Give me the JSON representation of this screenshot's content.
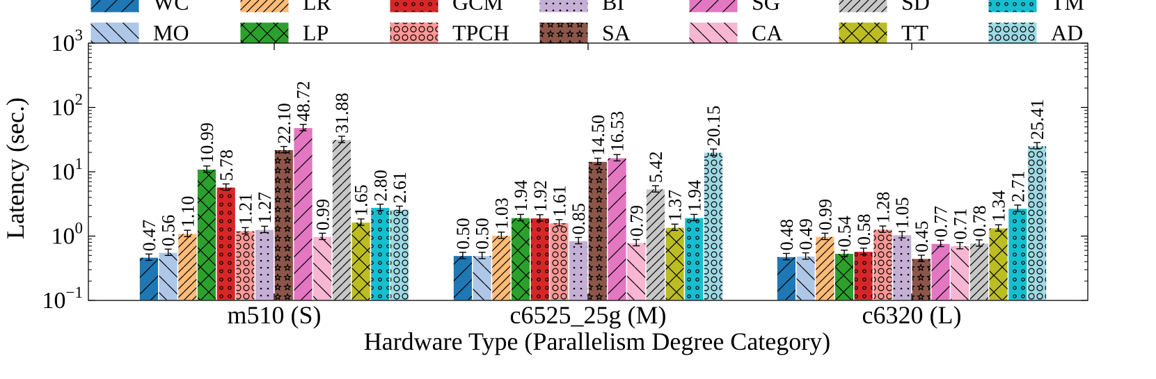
{
  "chart_data": {
    "type": "bar",
    "xlabel": "Hardware Type (Parallelism Degree Category)",
    "ylabel": "Latency (sec.)",
    "yscale": "log",
    "ylim": [
      0.1,
      1000
    ],
    "y_ticks": [
      {
        "base": "10",
        "exp": "3"
      },
      {
        "base": "10",
        "exp": "2"
      },
      {
        "base": "10",
        "exp": "1"
      },
      {
        "base": "10",
        "exp": "0"
      },
      {
        "base": "10",
        "exp": "−1"
      }
    ],
    "legend_placement": "top",
    "categories": [
      "m510 (S)",
      "c6525_25g (M)",
      "c6320 (L)"
    ],
    "series": [
      {
        "name": "WC",
        "color": "#1f77b4",
        "pattern": "diag-fwd",
        "values": [
          0.47,
          0.5,
          0.48
        ],
        "labels": [
          "0.47",
          "0.50",
          "0.48"
        ]
      },
      {
        "name": "MO",
        "color": "#aec7e8",
        "pattern": "diag-back",
        "values": [
          0.56,
          0.5,
          0.49
        ],
        "labels": [
          "0.56",
          "0.50",
          "0.49"
        ]
      },
      {
        "name": "LR",
        "color": "#ffbb78",
        "pattern": "diag-fwd-dense",
        "values": [
          1.1,
          1.03,
          0.99
        ],
        "labels": [
          "1.10",
          "1.03",
          "0.99"
        ]
      },
      {
        "name": "LP",
        "color": "#2ca02c",
        "pattern": "cross",
        "values": [
          10.99,
          1.94,
          0.54
        ],
        "labels": [
          "10.99",
          "1.94",
          "0.54"
        ]
      },
      {
        "name": "GCM",
        "color": "#d62728",
        "pattern": "small-circles",
        "values": [
          5.78,
          1.92,
          0.58
        ],
        "labels": [
          "5.78",
          "1.92",
          "0.58"
        ]
      },
      {
        "name": "TPCH",
        "color": "#ff9896",
        "pattern": "big-circles",
        "values": [
          1.21,
          1.61,
          1.28
        ],
        "labels": [
          "1.21",
          "1.61",
          "1.28"
        ]
      },
      {
        "name": "BI",
        "color": "#c5b0d5",
        "pattern": "dots",
        "values": [
          1.27,
          0.85,
          1.05
        ],
        "labels": [
          "1.27",
          "0.85",
          "1.05"
        ]
      },
      {
        "name": "SA",
        "color": "#8c564b",
        "pattern": "stars",
        "values": [
          22.1,
          14.5,
          0.45
        ],
        "labels": [
          "22.10",
          "14.50",
          "0.45"
        ]
      },
      {
        "name": "SG",
        "color": "#e377c2",
        "pattern": "diag-fwd",
        "values": [
          48.72,
          16.53,
          0.77
        ],
        "labels": [
          "48.72",
          "16.53",
          "0.77"
        ]
      },
      {
        "name": "CA",
        "color": "#f7b6d2",
        "pattern": "diag-back",
        "values": [
          0.99,
          0.79,
          0.71
        ],
        "labels": [
          "0.99",
          "0.79",
          "0.71"
        ]
      },
      {
        "name": "SD",
        "color": "#c7c7c7",
        "pattern": "diag-fwd-dense",
        "values": [
          31.88,
          5.42,
          0.78
        ],
        "labels": [
          "31.88",
          "5.42",
          "0.78"
        ]
      },
      {
        "name": "TT",
        "color": "#bcbd22",
        "pattern": "cross",
        "values": [
          1.65,
          1.37,
          1.34
        ],
        "labels": [
          "1.65",
          "1.37",
          "1.34"
        ]
      },
      {
        "name": "TM",
        "color": "#17becf",
        "pattern": "small-circles",
        "values": [
          2.8,
          1.94,
          2.71
        ],
        "labels": [
          "2.80",
          "1.94",
          "2.71"
        ]
      },
      {
        "name": "AD",
        "color": "#9edae5",
        "pattern": "big-circles",
        "values": [
          2.61,
          20.15,
          25.41
        ],
        "labels": [
          "2.61",
          "20.15",
          "25.41"
        ]
      }
    ],
    "legend_order": [
      "WC",
      "LR",
      "GCM",
      "BI",
      "SG",
      "SD",
      "TM",
      "MO",
      "LP",
      "TPCH",
      "SA",
      "CA",
      "TT",
      "AD"
    ],
    "error_bars": true,
    "grid": false
  }
}
